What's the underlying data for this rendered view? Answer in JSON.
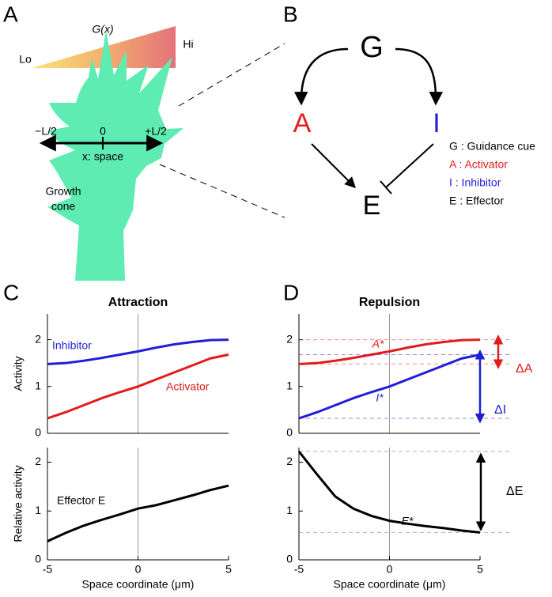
{
  "panels": [
    "A",
    "B",
    "C",
    "D"
  ],
  "diagram_a": {
    "gradient_label": "G(x)",
    "low": "Lo",
    "high": "Hi",
    "left_end": "−L/2",
    "center": "0",
    "right_end": "+L/2",
    "axis_label": "x: space",
    "cell_label": [
      "Growth",
      "cone"
    ]
  },
  "diagram_b": {
    "nodes": [
      {
        "label": "G",
        "color": "#000000"
      },
      {
        "label": "A",
        "color": "#e21b1b"
      },
      {
        "label": "I",
        "color": "#1f1fd6"
      },
      {
        "label": "E",
        "color": "#000000"
      }
    ],
    "legend": [
      {
        "text": "G : Guidance cue",
        "color": "#000000"
      },
      {
        "text": "A : Activator",
        "color": "#e21b1b"
      },
      {
        "text": "I : Inhibitor",
        "color": "#1f1fd6"
      },
      {
        "text": "E : Effector",
        "color": "#000000"
      }
    ]
  },
  "chart_data": [
    {
      "type": "line",
      "title": "Attraction",
      "ylabel": "Activity",
      "x": [
        -5,
        -4,
        -3,
        -2,
        -1,
        0,
        1,
        2,
        3,
        4,
        5
      ],
      "series": [
        {
          "name": "Inhibitor",
          "color": "#1f1fd6",
          "values": [
            1.48,
            1.5,
            1.55,
            1.61,
            1.68,
            1.75,
            1.83,
            1.9,
            1.95,
            1.99,
            2.0
          ]
        },
        {
          "name": "Activator",
          "color": "#e21b1b",
          "values": [
            0.32,
            0.45,
            0.6,
            0.75,
            0.88,
            1.0,
            1.15,
            1.3,
            1.45,
            1.6,
            1.68
          ]
        }
      ],
      "xlim": [
        -5,
        5
      ],
      "ylim": [
        0,
        2.55
      ],
      "yticks": [
        0,
        1,
        2
      ],
      "x_reference": 0
    },
    {
      "type": "line",
      "ylabel": "Relative activity",
      "xlabel": "Space coordinate (μm)",
      "x": [
        -5,
        -4,
        -3,
        -2,
        -1,
        0,
        1,
        2,
        3,
        4,
        5
      ],
      "series": [
        {
          "name": "Effector E",
          "color": "#000000",
          "values": [
            0.38,
            0.55,
            0.7,
            0.82,
            0.93,
            1.05,
            1.12,
            1.22,
            1.32,
            1.43,
            1.52
          ]
        }
      ],
      "xlim": [
        -5,
        5
      ],
      "xticks": [
        -5,
        0,
        5
      ],
      "ylim": [
        0,
        2.3
      ],
      "yticks": [
        0,
        1,
        2
      ],
      "x_reference": 0
    },
    {
      "type": "line",
      "title": "Repulsion",
      "x": [
        -5,
        -4,
        -3,
        -2,
        -1,
        0,
        1,
        2,
        3,
        4,
        5
      ],
      "series": [
        {
          "name": "A*",
          "color": "#e21b1b",
          "values": [
            1.48,
            1.5,
            1.55,
            1.61,
            1.68,
            1.75,
            1.83,
            1.9,
            1.95,
            1.99,
            2.0
          ],
          "delta_label": "ΔA"
        },
        {
          "name": "I*",
          "color": "#1f1fd6",
          "values": [
            0.32,
            0.45,
            0.6,
            0.75,
            0.88,
            1.0,
            1.15,
            1.3,
            1.45,
            1.6,
            1.68
          ],
          "delta_label": "ΔI"
        }
      ],
      "xlim": [
        -5,
        5
      ],
      "ylim": [
        0,
        2.55
      ],
      "yticks": [
        0,
        1,
        2
      ],
      "x_reference": 0
    },
    {
      "type": "line",
      "xlabel": "Space coordinate (μm)",
      "x": [
        -5,
        -4,
        -3,
        -2,
        -1,
        0,
        1,
        2,
        3,
        4,
        5
      ],
      "series": [
        {
          "name": "E*",
          "color": "#000000",
          "values": [
            2.22,
            1.75,
            1.3,
            1.05,
            0.9,
            0.8,
            0.74,
            0.69,
            0.65,
            0.6,
            0.56
          ],
          "delta_label": "ΔE"
        }
      ],
      "xlim": [
        -5,
        5
      ],
      "xticks": [
        -5,
        0,
        5
      ],
      "ylim": [
        0,
        2.3
      ],
      "yticks": [
        0,
        1,
        2
      ],
      "x_reference": 0
    }
  ]
}
